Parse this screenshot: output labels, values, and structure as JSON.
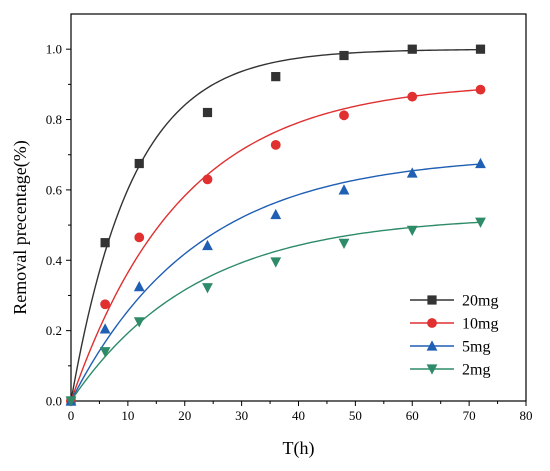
{
  "chart_data": {
    "type": "line",
    "title": "",
    "xlabel": "T(h)",
    "ylabel": "Removal precentage(%)",
    "xlim": [
      0,
      80
    ],
    "ylim": [
      0.0,
      1.1
    ],
    "xticks": [
      0,
      10,
      20,
      30,
      40,
      50,
      60,
      70,
      80
    ],
    "yticks": [
      0.0,
      0.2,
      0.4,
      0.6,
      0.8,
      1.0
    ],
    "xtick_labels": [
      "0",
      "10",
      "20",
      "30",
      "40",
      "50",
      "60",
      "70",
      "80"
    ],
    "ytick_labels": [
      "0.0",
      "0.2",
      "0.4",
      "0.6",
      "0.8",
      "1.0"
    ],
    "grid": false,
    "legend_position": "bottom-right",
    "x": [
      0,
      6,
      12,
      24,
      36,
      48,
      60,
      72
    ],
    "series": [
      {
        "name": "20mg",
        "color": "#333333",
        "marker": "square",
        "values": [
          0,
          0.45,
          0.675,
          0.82,
          0.922,
          0.982,
          1.0,
          1.0
        ],
        "fit": {
          "qmax": 1.0,
          "k": 0.092
        }
      },
      {
        "name": "10mg",
        "color": "#e03030",
        "marker": "circle",
        "values": [
          0,
          0.275,
          0.465,
          0.63,
          0.728,
          0.812,
          0.865,
          0.885
        ],
        "fit": {
          "qmax": 0.907,
          "k": 0.0515
        }
      },
      {
        "name": "5mg",
        "color": "#1f5fb4",
        "marker": "triangle-up",
        "values": [
          0,
          0.205,
          0.325,
          0.442,
          0.53,
          0.6,
          0.648,
          0.675
        ],
        "fit": {
          "qmax": 0.7,
          "k": 0.0455
        }
      },
      {
        "name": "2mg",
        "color": "#2e8b68",
        "marker": "triangle-down",
        "values": [
          0,
          0.14,
          0.225,
          0.322,
          0.395,
          0.448,
          0.485,
          0.508
        ],
        "fit": {
          "qmax": 0.528,
          "k": 0.0455
        }
      }
    ]
  }
}
